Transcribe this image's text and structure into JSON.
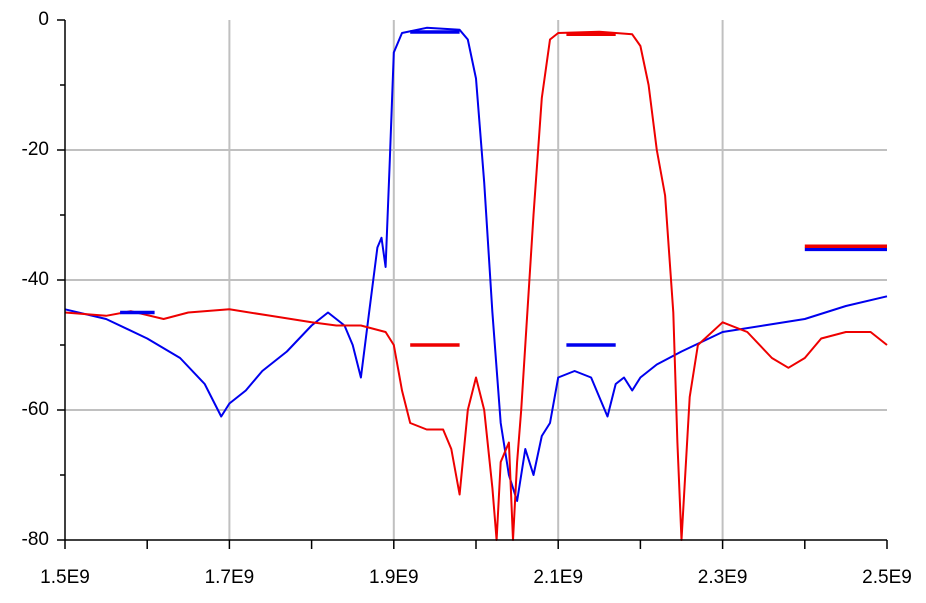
{
  "chart_data": {
    "type": "line",
    "xlim": [
      1500000000.0,
      2500000000.0
    ],
    "xticks": [
      {
        "value": 1500000000.0,
        "label": "1.5E9"
      },
      {
        "value": 1700000000.0,
        "label": "1.7E9"
      },
      {
        "value": 1900000000.0,
        "label": "1.9E9"
      },
      {
        "value": 2100000000.0,
        "label": "2.1E9"
      },
      {
        "value": 2300000000.0,
        "label": "2.3E9"
      },
      {
        "value": 2500000000.0,
        "label": "2.5E9"
      }
    ],
    "xminorticks": [
      1600000000.0,
      1800000000.0,
      2000000000.0,
      2200000000.0,
      2400000000.0
    ],
    "ylim": [
      -80,
      0
    ],
    "yticks": [
      -80,
      -60,
      -40,
      -20,
      0
    ],
    "yminorticks": [
      -70,
      -50,
      -30,
      -10
    ],
    "grid": true,
    "series": [
      {
        "color": "#0000ee",
        "x": [
          1500000000.0,
          1550000000.0,
          1600000000.0,
          1640000000.0,
          1670000000.0,
          1690000000.0,
          1700000000.0,
          1720000000.0,
          1740000000.0,
          1770000000.0,
          1800000000.0,
          1820000000.0,
          1840000000.0,
          1850000000.0,
          1860000000.0,
          1870000000.0,
          1880000000.0,
          1885000000.0,
          1890000000.0,
          1895000000.0,
          1900000000.0,
          1910000000.0,
          1940000000.0,
          1980000000.0,
          1990000000.0,
          2000000000.0,
          2010000000.0,
          2020000000.0,
          2030000000.0,
          2040000000.0,
          2050000000.0,
          2060000000.0,
          2070000000.0,
          2080000000.0,
          2090000000.0,
          2100000000.0,
          2120000000.0,
          2140000000.0,
          2150000000.0,
          2160000000.0,
          2170000000.0,
          2180000000.0,
          2190000000.0,
          2200000000.0,
          2220000000.0,
          2250000000.0,
          2300000000.0,
          2350000000.0,
          2400000000.0,
          2450000000.0,
          2500000000.0
        ],
        "values": [
          -44.5,
          -46,
          -49,
          -52,
          -56,
          -61,
          -59,
          -57,
          -54,
          -51,
          -47,
          -45,
          -47,
          -50,
          -55,
          -45,
          -35,
          -33.5,
          -38,
          -22,
          -5,
          -2,
          -1.2,
          -1.5,
          -3,
          -9,
          -25,
          -45,
          -62,
          -70,
          -74,
          -66,
          -70,
          -64,
          -62,
          -55,
          -54,
          -55,
          -58,
          -61,
          -56,
          -55,
          -57,
          -55,
          -53,
          -51,
          -48,
          -47,
          -46,
          -44,
          -42.5
        ]
      },
      {
        "color": "#ee0000",
        "x": [
          1500000000.0,
          1550000000.0,
          1580000000.0,
          1620000000.0,
          1650000000.0,
          1700000000.0,
          1750000000.0,
          1800000000.0,
          1830000000.0,
          1860000000.0,
          1890000000.0,
          1900000000.0,
          1910000000.0,
          1920000000.0,
          1940000000.0,
          1960000000.0,
          1970000000.0,
          1980000000.0,
          1990000000.0,
          2000000000.0,
          2010000000.0,
          2020000000.0,
          2025000000.0,
          2030000000.0,
          2040000000.0,
          2045000000.0,
          2050000000.0,
          2055000000.0,
          2060000000.0,
          2070000000.0,
          2080000000.0,
          2090000000.0,
          2100000000.0,
          2150000000.0,
          2190000000.0,
          2200000000.0,
          2210000000.0,
          2220000000.0,
          2230000000.0,
          2240000000.0,
          2245000000.0,
          2250000000.0,
          2260000000.0,
          2270000000.0,
          2300000000.0,
          2330000000.0,
          2360000000.0,
          2380000000.0,
          2400000000.0,
          2420000000.0,
          2450000000.0,
          2480000000.0,
          2500000000.0
        ],
        "values": [
          -45,
          -45.5,
          -44.8,
          -46,
          -45,
          -44.5,
          -45.5,
          -46.5,
          -47,
          -47,
          -48,
          -50,
          -57,
          -62,
          -63,
          -63,
          -66,
          -73,
          -60,
          -55,
          -60,
          -72,
          -80,
          -68,
          -65,
          -80,
          -68,
          -60,
          -50,
          -30,
          -12,
          -3,
          -2,
          -1.8,
          -2.2,
          -4,
          -10,
          -20,
          -27,
          -45,
          -65,
          -80,
          -58,
          -50,
          -46.5,
          -48,
          -52,
          -53.5,
          -52,
          -49,
          -48,
          -48,
          -50
        ]
      },
      {
        "color": "#0000ee",
        "x": [
          1567000000.0,
          1609000000.0
        ],
        "values": [
          -45,
          -45
        ]
      },
      {
        "color": "#0000ee",
        "x": [
          2110000000.0,
          2170000000.0
        ],
        "values": [
          -50,
          -50
        ]
      },
      {
        "color": "#ee0000",
        "x": [
          1920000000.0,
          1980000000.0
        ],
        "values": [
          -50,
          -50
        ]
      },
      {
        "color": "#0000ee",
        "x": [
          1920000000.0,
          1980000000.0
        ],
        "values": [
          -1.85,
          -1.85
        ]
      },
      {
        "color": "#ee0000",
        "x": [
          2110000000.0,
          2170000000.0
        ],
        "values": [
          -2.2,
          -2.2
        ]
      },
      {
        "color": "#0000ee",
        "x": [
          2400000000.0,
          2500000000.0
        ],
        "values": [
          -35.3,
          -35.3
        ]
      },
      {
        "color": "#ee0000",
        "x": [
          2400000000.0,
          2500000000.0
        ],
        "values": [
          -34.8,
          -34.8
        ]
      }
    ]
  }
}
